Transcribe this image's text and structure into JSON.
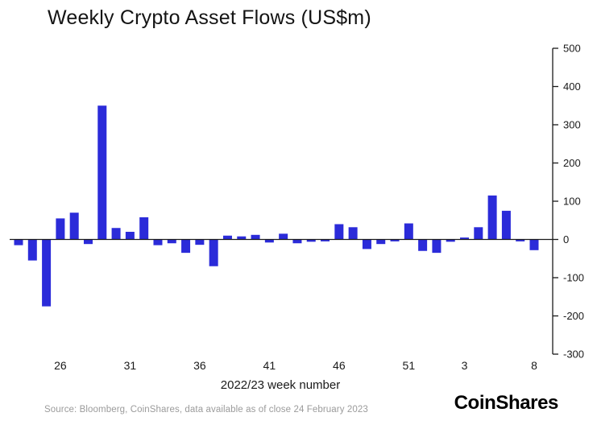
{
  "title": "Weekly Crypto Asset Flows (US$m)",
  "x_axis_title": "2022/23 week number",
  "source": "Source: Bloomberg, CoinShares, data available as of close 24 February 2023",
  "logo": "CoinShares",
  "colors": {
    "bar": "#2b2bd9",
    "axis": "#1a1a1a",
    "tick_text": "#1a1a1a",
    "source_text": "#9b9b9b",
    "background": "#ffffff"
  },
  "chart_data": {
    "type": "bar",
    "title": "Weekly Crypto Asset Flows (US$m)",
    "xlabel": "2022/23 week number",
    "ylabel": "",
    "x": [
      23,
      24,
      25,
      26,
      27,
      28,
      29,
      30,
      31,
      32,
      33,
      34,
      35,
      36,
      37,
      38,
      39,
      40,
      41,
      42,
      43,
      44,
      45,
      46,
      47,
      48,
      49,
      50,
      51,
      52,
      1,
      2,
      3,
      4,
      5,
      6,
      7,
      8
    ],
    "values": [
      -15,
      -55,
      -175,
      55,
      70,
      -12,
      350,
      30,
      20,
      58,
      -15,
      -10,
      -35,
      -14,
      -70,
      10,
      8,
      12,
      -8,
      15,
      -10,
      -6,
      -5,
      40,
      32,
      -25,
      -12,
      -5,
      42,
      -30,
      -35,
      -6,
      5,
      32,
      115,
      75,
      -5,
      -28
    ],
    "x_tick_weeks": [
      26,
      31,
      36,
      41,
      46,
      51,
      3,
      8
    ],
    "y_ticks": [
      500,
      400,
      300,
      200,
      100,
      0,
      -100,
      -200,
      -300
    ],
    "ylim": [
      -300,
      500
    ],
    "grid": false,
    "legend": "none",
    "axis_position": "right"
  }
}
